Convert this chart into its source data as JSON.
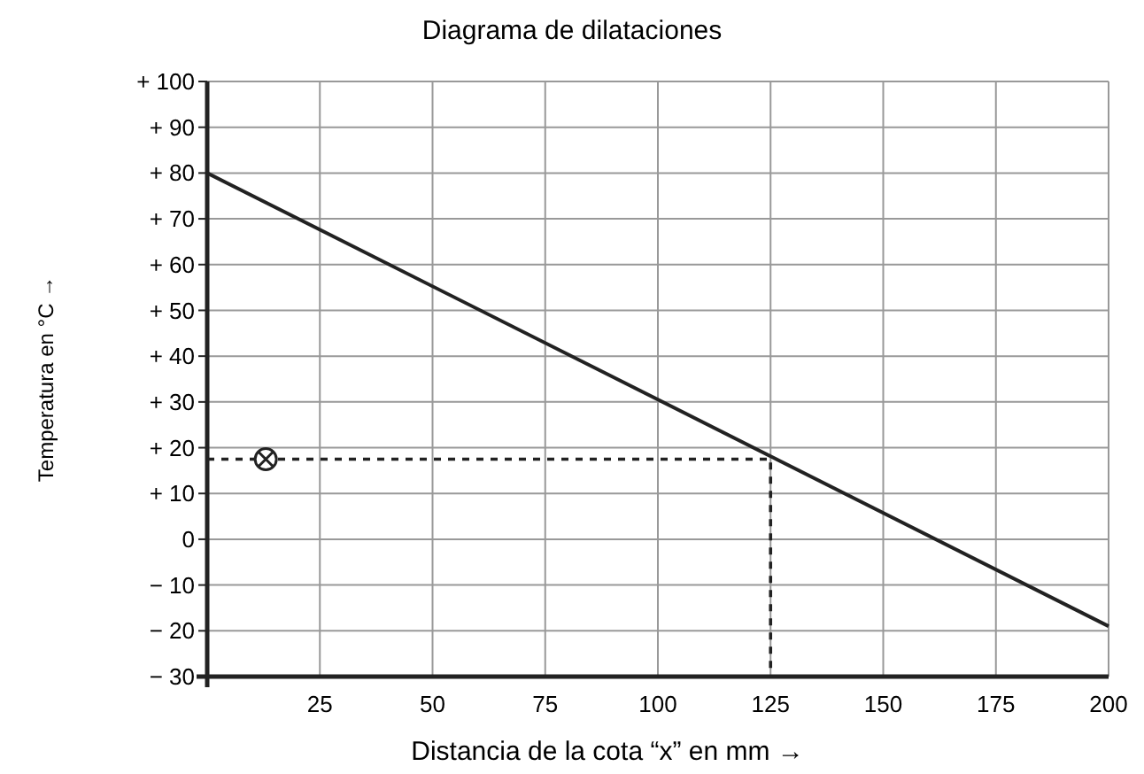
{
  "chart_data": {
    "type": "line",
    "title": "Diagrama de dilataciones",
    "xlabel": "Distancia de la cota “x” en mm →",
    "ylabel": "Temperatura en °C →",
    "xlim": [
      0,
      200
    ],
    "xticks": [
      25,
      50,
      75,
      100,
      125,
      150,
      175,
      200
    ],
    "ylim": [
      -30,
      100
    ],
    "yticks": [
      {
        "value": 100,
        "label": "+ 100"
      },
      {
        "value": 90,
        "label": "+ 90"
      },
      {
        "value": 80,
        "label": "+ 80"
      },
      {
        "value": 70,
        "label": "+ 70"
      },
      {
        "value": 60,
        "label": "+ 60"
      },
      {
        "value": 50,
        "label": "+ 50"
      },
      {
        "value": 40,
        "label": "+ 40"
      },
      {
        "value": 30,
        "label": "+ 30"
      },
      {
        "value": 20,
        "label": "+ 20"
      },
      {
        "value": 10,
        "label": "+ 10"
      },
      {
        "value": 0,
        "label": "0"
      },
      {
        "value": -10,
        "label": "− 10"
      },
      {
        "value": -20,
        "label": "− 20"
      },
      {
        "value": -30,
        "label": "− 30"
      }
    ],
    "grid": true,
    "series": [
      {
        "color": "#222222",
        "x": [
          0,
          200
        ],
        "values": [
          80,
          -19
        ],
        "line_style": "solid",
        "marker": "none"
      },
      {
        "type": "line",
        "color": "#222222",
        "x": [
          0,
          125,
          125
        ],
        "values": [
          17.5,
          17.5,
          -30
        ],
        "line_style": "dashed",
        "marker": "none"
      },
      {
        "type": "scatter",
        "color": "#222222",
        "x": [
          13
        ],
        "values": [
          17.5
        ],
        "marker": "cross"
      }
    ]
  }
}
